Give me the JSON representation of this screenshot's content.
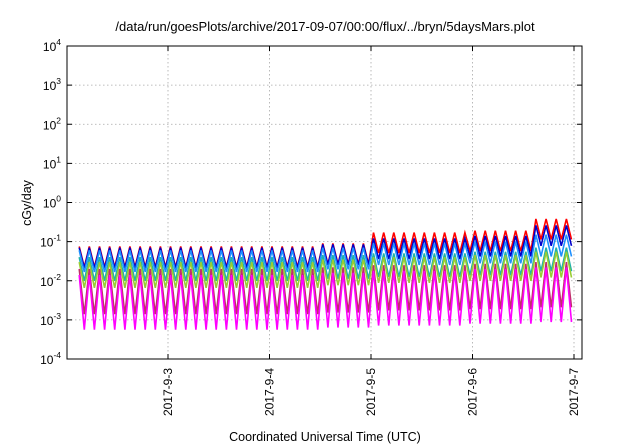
{
  "chart_data": {
    "type": "line",
    "title": "/data/run/goesPlots/archive/2017-09-07/00:00/flux/../bryn/5daysMars.plot",
    "xlabel": "Coordinated Universal Time (UTC)",
    "ylabel": "cGy/day",
    "yscale": "log",
    "ylim": [
      0.0001,
      10000
    ],
    "xlim": [
      "2017-09-02T03:00",
      "2017-09-07T00:30"
    ],
    "grid": true,
    "y_ticks": [
      {
        "base": "10",
        "exp": "-4",
        "value": 0.0001
      },
      {
        "base": "10",
        "exp": "-3",
        "value": 0.001
      },
      {
        "base": "10",
        "exp": "-2",
        "value": 0.01
      },
      {
        "base": "10",
        "exp": "-1",
        "value": 0.1
      },
      {
        "base": "10",
        "exp": "0",
        "value": 1
      },
      {
        "base": "10",
        "exp": "1",
        "value": 10
      },
      {
        "base": "10",
        "exp": "2",
        "value": 100
      },
      {
        "base": "10",
        "exp": "3",
        "value": 1000
      },
      {
        "base": "10",
        "exp": "4",
        "value": 10000
      }
    ],
    "x_ticks": [
      {
        "label": "2017-9-3",
        "value": "2017-09-03T00:00"
      },
      {
        "label": "2017-9-4",
        "value": "2017-09-04T00:00"
      },
      {
        "label": "2017-9-5",
        "value": "2017-09-05T00:00"
      },
      {
        "label": "2017-9-6",
        "value": "2017-09-06T00:00"
      },
      {
        "label": "2017-9-7",
        "value": "2017-09-07T00:00"
      }
    ],
    "x_grid_hours": [
      0,
      24,
      48,
      72,
      96
    ],
    "oscillation_period_hours": 2.4,
    "series": [
      {
        "color": "#ff0000",
        "peaks": [
          {
            "until": "2017-09-04T12:00",
            "value": 0.075
          },
          {
            "until": "2017-09-05T00:00",
            "value": 0.09
          },
          {
            "until": "2017-09-05T23:00",
            "value": 0.17
          },
          {
            "until": "2017-09-06T15:00",
            "value": 0.19
          },
          {
            "until": "2017-09-07T00:30",
            "value": 0.38
          }
        ],
        "trough_ratio": 0.3
      },
      {
        "color": "#0000cc",
        "peaks": [
          {
            "until": "2017-09-04T12:00",
            "value": 0.07
          },
          {
            "until": "2017-09-05T00:00",
            "value": 0.085
          },
          {
            "until": "2017-09-05T23:00",
            "value": 0.12
          },
          {
            "until": "2017-09-06T15:00",
            "value": 0.14
          },
          {
            "until": "2017-09-07T00:30",
            "value": 0.26
          }
        ],
        "trough_ratio": 0.3
      },
      {
        "color": "#1e90ff",
        "peaks": [
          {
            "until": "2017-09-04T12:00",
            "value": 0.06
          },
          {
            "until": "2017-09-05T00:00",
            "value": 0.07
          },
          {
            "until": "2017-09-05T23:00",
            "value": 0.09
          },
          {
            "until": "2017-09-06T15:00",
            "value": 0.1
          },
          {
            "until": "2017-09-07T00:30",
            "value": 0.15
          }
        ],
        "trough_ratio": 0.28
      },
      {
        "color": "#20b2aa",
        "peaks": [
          {
            "until": "2017-09-04T12:00",
            "value": 0.04
          },
          {
            "until": "2017-09-05T00:00",
            "value": 0.045
          },
          {
            "until": "2017-09-05T23:00",
            "value": 0.05
          },
          {
            "until": "2017-09-06T15:00",
            "value": 0.055
          },
          {
            "until": "2017-09-07T00:30",
            "value": 0.07
          }
        ],
        "trough_ratio": 0.25
      },
      {
        "color": "#9acd32",
        "peaks": [
          {
            "until": "2017-09-04T12:00",
            "value": 0.03
          },
          {
            "until": "2017-09-05T00:00",
            "value": 0.035
          },
          {
            "until": "2017-09-05T23:00",
            "value": 0.04
          },
          {
            "until": "2017-09-06T15:00",
            "value": 0.045
          },
          {
            "until": "2017-09-07T00:30",
            "value": 0.055
          }
        ],
        "trough_ratio": 0.22
      },
      {
        "color": "#c0306a",
        "peaks": [
          {
            "until": "2017-09-04T12:00",
            "value": 0.02
          },
          {
            "until": "2017-09-05T00:00",
            "value": 0.022
          },
          {
            "until": "2017-09-05T23:00",
            "value": 0.025
          },
          {
            "until": "2017-09-06T15:00",
            "value": 0.027
          },
          {
            "until": "2017-09-07T00:30",
            "value": 0.03
          }
        ],
        "trough_ratio": 0.07
      },
      {
        "color": "#ff00ff",
        "peaks": [
          {
            "until": "2017-09-04T12:00",
            "value": 0.014
          },
          {
            "until": "2017-09-05T00:00",
            "value": 0.016
          },
          {
            "until": "2017-09-05T23:00",
            "value": 0.018
          },
          {
            "until": "2017-09-06T15:00",
            "value": 0.02
          },
          {
            "until": "2017-09-07T00:30",
            "value": 0.022
          }
        ],
        "trough_ratio": 0.04
      }
    ]
  }
}
